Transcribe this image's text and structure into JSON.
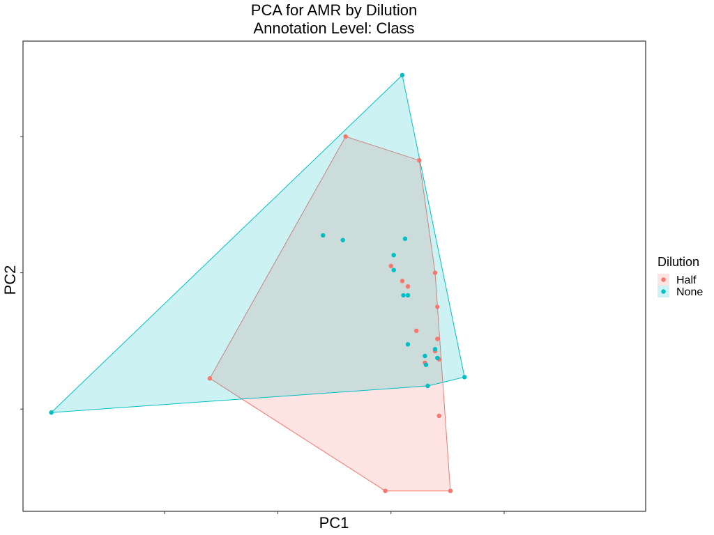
{
  "chart_data": {
    "type": "scatter",
    "title": "PCA for AMR by Dilution",
    "subtitle": "Annotation Level: Class",
    "xlabel": "PC1",
    "ylabel": "PC2",
    "xlim": [
      -6.5,
      4.5
    ],
    "ylim": [
      -3.5,
      3.4
    ],
    "grid": false,
    "tick_labels_shown": false,
    "x_ticks": [
      -4,
      -2,
      0,
      2
    ],
    "y_ticks": [
      -2,
      0,
      2
    ],
    "legend": {
      "title": "Dilution",
      "placement": "right",
      "entries": [
        "Half",
        "None"
      ]
    },
    "hulls": true,
    "series": [
      {
        "name": "Half",
        "color": "#F8766D",
        "hull_fill": "#F8766D",
        "points": [
          [
            -0.8,
            2.0
          ],
          [
            0.5,
            1.65
          ],
          [
            -3.2,
            -1.55
          ],
          [
            -0.1,
            -3.2
          ],
          [
            1.05,
            -3.2
          ],
          [
            0.85,
            -2.1
          ],
          [
            0.78,
            0.0
          ],
          [
            0.82,
            -0.5
          ],
          [
            0.82,
            -0.97
          ],
          [
            0.78,
            -1.15
          ],
          [
            0.85,
            -1.27
          ],
          [
            0.6,
            -1.32
          ],
          [
            0.45,
            -0.85
          ],
          [
            0.3,
            -0.2
          ],
          [
            0.2,
            -0.12
          ],
          [
            0.0,
            0.1
          ]
        ]
      },
      {
        "name": "None",
        "color": "#00BFC4",
        "hull_fill": "#00BFC4",
        "points": [
          [
            -6.0,
            -2.05
          ],
          [
            0.2,
            2.9
          ],
          [
            1.3,
            -1.53
          ],
          [
            0.65,
            -1.66
          ],
          [
            -1.2,
            0.55
          ],
          [
            -0.85,
            0.48
          ],
          [
            0.25,
            0.5
          ],
          [
            0.05,
            0.26
          ],
          [
            0.05,
            0.04
          ],
          [
            0.22,
            -0.33
          ],
          [
            0.3,
            -0.33
          ],
          [
            0.3,
            -1.05
          ],
          [
            0.6,
            -1.22
          ],
          [
            0.78,
            -1.12
          ],
          [
            0.82,
            -1.25
          ],
          [
            0.62,
            -1.35
          ]
        ]
      }
    ]
  }
}
